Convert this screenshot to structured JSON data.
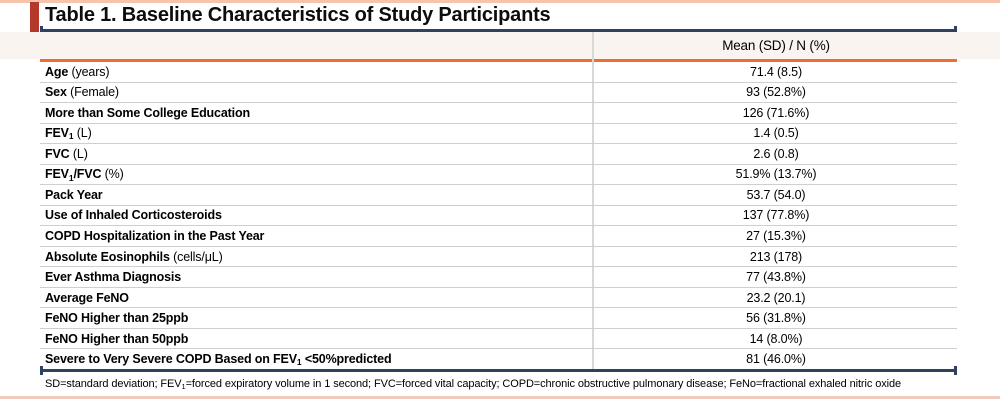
{
  "title": "Table 1. Baseline Characteristics of Study Participants",
  "header": {
    "value_column": "Mean (SD) / N (%)"
  },
  "table": {
    "rows": [
      {
        "label": [
          {
            "t": "Age",
            "b": 1
          },
          {
            "t": " (years)"
          }
        ],
        "value": "71.4 (8.5)"
      },
      {
        "label": [
          {
            "t": "Sex",
            "b": 1
          },
          {
            "t": " (Female)"
          }
        ],
        "value": "93 (52.8%)"
      },
      {
        "label": [
          {
            "t": "More than Some College Education",
            "b": 1
          }
        ],
        "value": "126 (71.6%)"
      },
      {
        "label": [
          {
            "t": "FEV",
            "b": 1
          },
          {
            "t": "1",
            "b": 1,
            "s": 1
          },
          {
            "t": " (L)"
          }
        ],
        "value": "1.4 (0.5)"
      },
      {
        "label": [
          {
            "t": "FVC",
            "b": 1
          },
          {
            "t": " (L)"
          }
        ],
        "value": "2.6 (0.8)"
      },
      {
        "label": [
          {
            "t": "FEV",
            "b": 1
          },
          {
            "t": "1",
            "b": 1,
            "s": 1
          },
          {
            "t": "/FVC",
            "b": 1
          },
          {
            "t": " (%)"
          }
        ],
        "value": "51.9% (13.7%)"
      },
      {
        "label": [
          {
            "t": "Pack Year",
            "b": 1
          }
        ],
        "value": "53.7 (54.0)"
      },
      {
        "label": [
          {
            "t": "Use of Inhaled Corticosteroids",
            "b": 1
          }
        ],
        "value": "137 (77.8%)"
      },
      {
        "label": [
          {
            "t": "COPD Hospitalization in the Past Year",
            "b": 1
          }
        ],
        "value": "27 (15.3%)"
      },
      {
        "label": [
          {
            "t": "Absolute Eosinophils",
            "b": 1
          },
          {
            "t": " (cells/μL)"
          }
        ],
        "value": "213 (178)"
      },
      {
        "label": [
          {
            "t": "Ever Asthma Diagnosis",
            "b": 1
          }
        ],
        "value": "77 (43.8%)"
      },
      {
        "label": [
          {
            "t": "Average FeNO",
            "b": 1
          }
        ],
        "value": "23.2 (20.1)"
      },
      {
        "label": [
          {
            "t": "FeNO Higher than 25ppb",
            "b": 1
          }
        ],
        "value": "56 (31.8%)"
      },
      {
        "label": [
          {
            "t": "FeNO Higher than 50ppb",
            "b": 1
          }
        ],
        "value": "14 (8.0%)"
      },
      {
        "label": [
          {
            "t": "Severe to Very Severe COPD Based on FEV",
            "b": 1
          },
          {
            "t": "1",
            "b": 1,
            "s": 1
          },
          {
            "t": " <50%predicted",
            "b": 1
          }
        ],
        "value": "81 (46.0%)"
      }
    ]
  },
  "footnote": {
    "segments": [
      {
        "t": "SD=standard deviation; FEV"
      },
      {
        "t": "1",
        "s": 1
      },
      {
        "t": "=forced expiratory volume in 1 second; FVC=forced vital capacity; COPD=chronic obstructive pulmonary disease; FeNo=fractional exhaled nitric oxide"
      }
    ]
  },
  "colors": {
    "accent_bar": "#b5392b",
    "rule_navy": "#2f4160",
    "rule_orange": "#ed6d35",
    "band_top": "#f6c4ab",
    "band_bottom": "#f3c8bc",
    "header_bg": "#faf4f0",
    "divider": "#d8d8d8",
    "separator": "#cfcfcf",
    "text": "#000000"
  }
}
